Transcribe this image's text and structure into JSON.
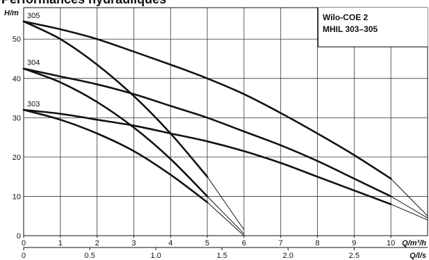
{
  "title": "Performances hydrauliques",
  "legend": {
    "line1": "Wilo-COE 2",
    "line2": "MHIL 303–305"
  },
  "chart_data": {
    "type": "line",
    "ylabel": "H/m",
    "xlabel_m3h": "Q/m³/h",
    "xlabel_ls": "Q/l/s",
    "xlim": [
      0,
      11
    ],
    "ylim": [
      0,
      58
    ],
    "xticks_m3h": [
      "0",
      "1",
      "2",
      "3",
      "4",
      "5",
      "6",
      "7",
      "8",
      "9",
      "10"
    ],
    "xticks_ls": [
      {
        "value": 0,
        "label": "0"
      },
      {
        "value": 0.5,
        "label": "0.5"
      },
      {
        "value": 1.0,
        "label": "1.0"
      },
      {
        "value": 1.5,
        "label": "1.5"
      },
      {
        "value": 2.0,
        "label": "2.0"
      },
      {
        "value": 2.5,
        "label": "2.5"
      }
    ],
    "yticks": [
      "0",
      "10",
      "20",
      "30",
      "40",
      "50"
    ],
    "grid": true,
    "series": [
      {
        "name": "305",
        "curve": "max",
        "x": [
          0,
          1,
          2,
          3,
          4,
          5,
          6,
          7,
          8,
          9,
          10,
          11
        ],
        "y": [
          54.5,
          52.5,
          50,
          46.8,
          43.5,
          40,
          36,
          31.2,
          26,
          20.5,
          14.5,
          5
        ]
      },
      {
        "name": "305",
        "curve": "min",
        "x": [
          0,
          1,
          2,
          3,
          4,
          5,
          6
        ],
        "y": [
          54.5,
          50,
          43.5,
          35.5,
          26,
          15,
          1.5
        ]
      },
      {
        "name": "304",
        "curve": "max",
        "x": [
          0,
          1,
          2,
          3,
          4,
          5,
          6,
          7,
          8,
          9,
          10,
          11
        ],
        "y": [
          42.5,
          40.5,
          38.5,
          36,
          33,
          30,
          26.5,
          23,
          19,
          14.5,
          10,
          4.5
        ]
      },
      {
        "name": "304",
        "curve": "min",
        "x": [
          0,
          1,
          2,
          3,
          4,
          5,
          6
        ],
        "y": [
          42.5,
          39,
          34,
          27.5,
          19.5,
          10,
          0.5
        ]
      },
      {
        "name": "303",
        "curve": "max",
        "x": [
          0,
          1,
          2,
          3,
          4,
          5,
          6,
          7,
          8,
          9,
          10,
          11
        ],
        "y": [
          32,
          31,
          29.5,
          28,
          26,
          24,
          21.5,
          18.5,
          15,
          11.5,
          8,
          4
        ]
      },
      {
        "name": "303",
        "curve": "min",
        "x": [
          0,
          1,
          2,
          3,
          4,
          5
        ],
        "y": [
          32,
          29.5,
          26,
          21.5,
          15.5,
          8.5
        ]
      }
    ],
    "operating_limits": [
      {
        "from": "305",
        "x": [
          10,
          11
        ],
        "y": [
          14.5,
          5
        ]
      },
      {
        "from": "304",
        "x": [
          10,
          11
        ],
        "y": [
          10,
          4.5
        ]
      },
      {
        "from": "303",
        "x": [
          10,
          11
        ],
        "y": [
          8,
          4
        ]
      },
      {
        "from": "305",
        "x": [
          5,
          6
        ],
        "y": [
          15,
          1.5
        ]
      },
      {
        "from": "304",
        "x": [
          5,
          6
        ],
        "y": [
          10,
          0.5
        ]
      },
      {
        "from": "303",
        "x": [
          5,
          6
        ],
        "y": [
          8.5,
          0
        ]
      }
    ]
  }
}
